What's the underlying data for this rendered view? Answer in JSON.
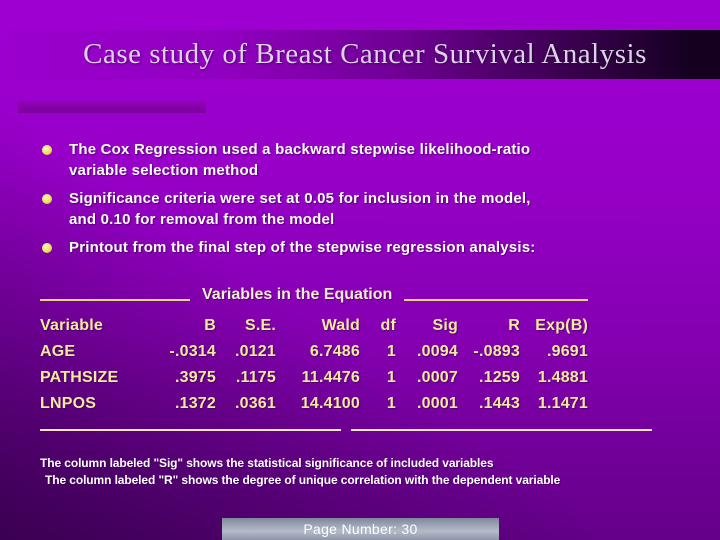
{
  "slide": {
    "title": "Case study of Breast Cancer Survival Analysis",
    "bullets": [
      "The Cox Regression used a backward stepwise likelihood-ratio\nvariable selection method",
      "Significance criteria were set at 0.05 for inclusion in the model,\nand 0.10 for removal from the model",
      "Printout from the final step of the stepwise regression analysis:"
    ],
    "table": {
      "caption": "Variables in the Equation",
      "headers": [
        "Variable",
        "B",
        "S.E.",
        "Wald",
        "df",
        "Sig",
        "R",
        "Exp(B)"
      ],
      "rows": [
        [
          "AGE",
          "-.0314",
          ".0121",
          "6.7486",
          "1",
          ".0094",
          "-.0893",
          ".9691"
        ],
        [
          "PATHSIZE",
          ".3975",
          ".1175",
          "11.4476",
          "1",
          ".0007",
          ".1259",
          "1.4881"
        ],
        [
          "LNPOS",
          ".1372",
          ".0361",
          "14.4100",
          "1",
          ".0001",
          ".1443",
          "1.1471"
        ]
      ]
    },
    "footnotes": [
      "The column labeled \"Sig\" shows the statistical significance of included variables",
      "The column labeled \"R\" shows the degree of unique correlation with the dependent variable"
    ],
    "footer": {
      "page_label": "Page Number: 30"
    },
    "colors": {
      "background_purple": "#9900cc",
      "title_bar_dark": "#150020",
      "title_text": "#ded1eb",
      "table_text": "#f6e9a0",
      "bullet_dot": "#f0e060",
      "footnote_text": "#ffffff",
      "page_bar_gray": "#9aa2b4"
    }
  }
}
